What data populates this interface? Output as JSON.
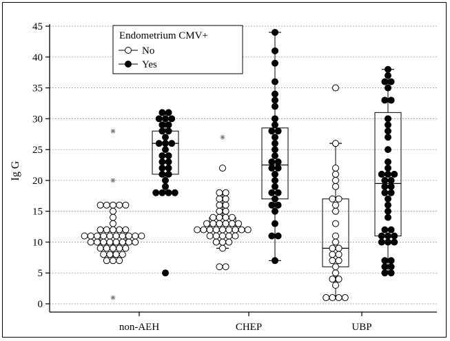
{
  "chart_data": {
    "type": "box-plot with dot overlay",
    "ylabel": "Ig G",
    "xlabel": "",
    "ylim": [
      0,
      45
    ],
    "yticks": [
      0,
      5,
      10,
      15,
      20,
      25,
      30,
      35,
      40,
      45
    ],
    "grid": true,
    "legend": {
      "title": "Endometrium CMV+",
      "placement": "top-left",
      "entries": [
        {
          "label": "No",
          "marker": "open-circle"
        },
        {
          "label": "Yes",
          "marker": "filled-circle"
        }
      ]
    },
    "categories": [
      "non-AEH",
      "CHEP",
      "UBP"
    ],
    "groups": [
      {
        "category": "non-AEH",
        "no": {
          "box": {
            "q1": 9.7,
            "median": 11,
            "q3": 12.2,
            "wmin": 7,
            "wmax": 16
          },
          "points": [
            7,
            7,
            7,
            8,
            8,
            8,
            8,
            9,
            9,
            9,
            9,
            9,
            10,
            10,
            10,
            10,
            10,
            10,
            10,
            10,
            11,
            11,
            11,
            11,
            11,
            11,
            11,
            11,
            11,
            11,
            12,
            12,
            12,
            12,
            12,
            13,
            14,
            15,
            16,
            16,
            16,
            16,
            16
          ],
          "outliers": [
            28,
            20,
            1
          ]
        },
        "yes": {
          "box": {
            "q1": 21,
            "median": 26,
            "q3": 28,
            "wmin": 18,
            "wmax": 31
          },
          "points": [
            18,
            18,
            18,
            18,
            19,
            20,
            21,
            21,
            22,
            22,
            23,
            23,
            24,
            24,
            25,
            26,
            26,
            26,
            27,
            28,
            28,
            29,
            29,
            30,
            30,
            30,
            31,
            31
          ],
          "outliers": [
            5
          ]
        }
      },
      {
        "category": "CHEP",
        "no": {
          "box": {
            "q1": 11,
            "median": 12,
            "q3": 14,
            "wmin": 9,
            "wmax": 18
          },
          "points": [
            6,
            6,
            9,
            10,
            10,
            10,
            11,
            11,
            11,
            11,
            11,
            12,
            12,
            12,
            12,
            12,
            12,
            12,
            12,
            12,
            13,
            13,
            13,
            13,
            13,
            13,
            14,
            14,
            14,
            14,
            15,
            15,
            16,
            16,
            17,
            17,
            18,
            18,
            22
          ],
          "outliers": [
            27
          ]
        },
        "yes": {
          "box": {
            "q1": 17,
            "median": 22.5,
            "q3": 28.5,
            "wmin": 7,
            "wmax": 44
          },
          "points": [
            7,
            11,
            11,
            13,
            15,
            16,
            16,
            17,
            18,
            18,
            19,
            20,
            21,
            22,
            22,
            23,
            23,
            24,
            25,
            26,
            27,
            28,
            28,
            29,
            30,
            32,
            33,
            34,
            36,
            39,
            41,
            44
          ]
        }
      },
      {
        "category": "UBP",
        "no": {
          "box": {
            "q1": 6,
            "median": 9,
            "q3": 17,
            "wmin": 1,
            "wmax": 26
          },
          "points": [
            1,
            1,
            1,
            1,
            3,
            4,
            4,
            5,
            6,
            7,
            7,
            8,
            8,
            9,
            9,
            10,
            11,
            13,
            15,
            16,
            17,
            17,
            19,
            20,
            21,
            22,
            26,
            35
          ]
        },
        "yes": {
          "box": {
            "q1": 11,
            "median": 19.5,
            "q3": 31,
            "wmin": 5,
            "wmax": 38
          },
          "points": [
            5,
            5,
            6,
            6,
            7,
            7,
            10,
            10,
            10,
            11,
            11,
            11,
            12,
            12,
            14,
            15,
            16,
            17,
            18,
            18,
            19,
            19,
            20,
            20,
            21,
            21,
            21,
            22,
            23,
            25,
            27,
            28,
            29,
            30,
            33,
            33,
            35,
            36,
            36,
            37,
            38
          ]
        }
      }
    ]
  }
}
